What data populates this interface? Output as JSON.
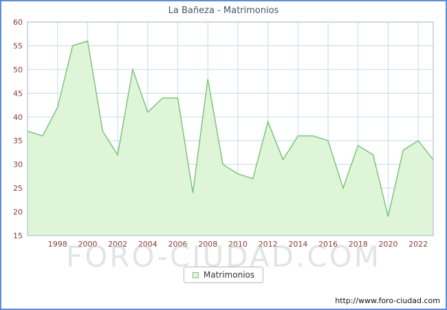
{
  "title": "La Bañeza - Matrimonios",
  "legend": {
    "label": "Matrimonios"
  },
  "watermark": "FORO-CIUDAD.COM",
  "footer": {
    "url": "http://www.foro-ciudad.com"
  },
  "chart_data": {
    "type": "area",
    "title": "La Bañeza - Matrimonios",
    "x": [
      1996,
      1997,
      1998,
      1999,
      2000,
      2001,
      2002,
      2003,
      2004,
      2005,
      2006,
      2007,
      2008,
      2009,
      2010,
      2011,
      2012,
      2013,
      2014,
      2015,
      2016,
      2017,
      2018,
      2019,
      2020,
      2021,
      2022,
      2023
    ],
    "series": [
      {
        "name": "Matrimonios",
        "values": [
          37,
          36,
          42,
          55,
          56,
          37,
          32,
          50,
          41,
          44,
          44,
          24,
          48,
          30,
          28,
          27,
          39,
          31,
          36,
          36,
          35,
          25,
          34,
          32,
          19,
          33,
          35,
          31
        ]
      }
    ],
    "xlabel": "",
    "ylabel": "",
    "ylim": [
      15,
      60
    ],
    "y_ticks": [
      15,
      20,
      25,
      30,
      35,
      40,
      45,
      50,
      55,
      60
    ],
    "x_tick_labels": [
      1998,
      2000,
      2002,
      2004,
      2006,
      2008,
      2010,
      2012,
      2014,
      2016,
      2018,
      2020,
      2022
    ],
    "grid": true,
    "legend_position": "bottom",
    "colors": {
      "fill": "#dff5d8",
      "line": "#7cc47c",
      "grid": "#c6d9ec",
      "frame": "#9fb6cc",
      "axis_text": "#83403a",
      "title": "#45536b"
    }
  }
}
